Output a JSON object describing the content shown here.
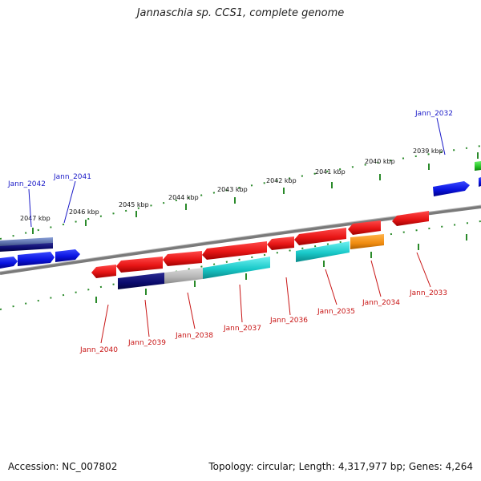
{
  "title": "Jannaschia sp. CCS1, complete genome",
  "footer": {
    "accession": "Accession: NC_007802",
    "stats": "Topology: circular; Length: 4,317,977 bp; Genes: 4,264"
  },
  "scale_labels": [
    "2047 kbp",
    "2046 kbp",
    "2045 kbp",
    "2044 kbp",
    "2043 kbp",
    "2042 kbp",
    "2041 kbp",
    "2040 kbp",
    "2039 kbp"
  ],
  "genes_forward": [
    {
      "label": "Jann_2042",
      "color": "#2a35c8"
    },
    {
      "label": "Jann_2041",
      "color": "#1010e8"
    },
    {
      "label": "Jann_2032",
      "color": "#0a14e0"
    }
  ],
  "genes_reverse": [
    {
      "label": "Jann_2040",
      "color": "#ee1a1a"
    },
    {
      "label": "Jann_2039",
      "color": "#e51515"
    },
    {
      "label": "Jann_2038",
      "color": "#ee1a1a"
    },
    {
      "label": "Jann_2037",
      "color": "#ee1a1a"
    },
    {
      "label": "Jann_2036",
      "color": "#ee1a1a"
    },
    {
      "label": "Jann_2035",
      "color": "#ee1a1a"
    },
    {
      "label": "Jann_2034",
      "color": "#ee1a1a"
    },
    {
      "label": "Jann_2033",
      "color": "#ee1a1a"
    }
  ],
  "colors": {
    "forward_label": "#1a1ac8",
    "reverse_label": "#c81414",
    "backbone": "#7a7a7a",
    "tick": "#2a8a2a",
    "cog_navy": "#0b0b6e",
    "cog_grey": "#b4b4b4",
    "cog_cyan": "#19c9c9",
    "cog_orange": "#f08c10",
    "cog_green": "#22c022",
    "cog_slate": "#5a6ea8"
  }
}
